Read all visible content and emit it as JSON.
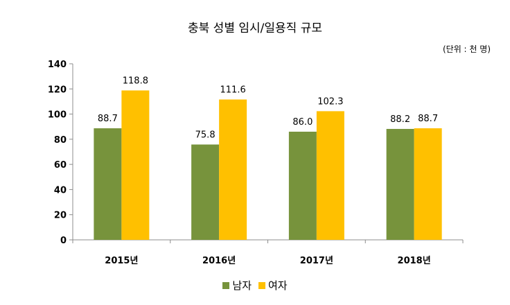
{
  "chart_data": {
    "type": "bar",
    "title": "충북 성별 임시/일용직 규모",
    "unit": "(단위 : 천 명)",
    "categories": [
      "2015년",
      "2016년",
      "2017년",
      "2018년"
    ],
    "series": [
      {
        "name": "남자",
        "values": [
          88.7,
          75.8,
          86.0,
          88.2
        ],
        "labels": [
          "88.7",
          "75.8",
          "86.0",
          "88.2"
        ],
        "color": "#77933C"
      },
      {
        "name": "여자",
        "values": [
          118.8,
          111.6,
          102.3,
          88.7
        ],
        "labels": [
          "118.8",
          "111.6",
          "102.3",
          "88.7"
        ],
        "color": "#FFC000"
      }
    ],
    "ylim": [
      0,
      140
    ],
    "yticks": [
      "0",
      "20",
      "40",
      "60",
      "80",
      "100",
      "120",
      "140"
    ],
    "grid": false,
    "legend": "bottom"
  }
}
